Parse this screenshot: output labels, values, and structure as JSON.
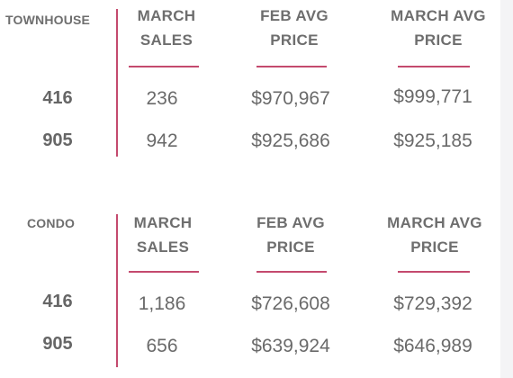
{
  "townhouse": {
    "label": "TOWNHOUSE",
    "columns": [
      {
        "line1": "MARCH",
        "line2": "SALES"
      },
      {
        "line1": "FEB AVG",
        "line2": "PRICE"
      },
      {
        "line1": "MARCH AVG",
        "line2": "PRICE"
      }
    ],
    "rows": [
      {
        "area": "416",
        "march_sales": "236",
        "feb_avg_price": "$970,967",
        "march_avg_price": "$999,771"
      },
      {
        "area": "905",
        "march_sales": "942",
        "feb_avg_price": "$925,686",
        "march_avg_price": "$925,185"
      }
    ]
  },
  "condo": {
    "label": "CONDO",
    "columns": [
      {
        "line1": "MARCH",
        "line2": "SALES"
      },
      {
        "line1": "FEB AVG",
        "line2": "PRICE"
      },
      {
        "line1": "MARCH AVG",
        "line2": "PRICE"
      }
    ],
    "rows": [
      {
        "area": "416",
        "march_sales": "1,186",
        "feb_avg_price": "$726,608",
        "march_avg_price": "$729,392"
      },
      {
        "area": "905",
        "march_sales": "656",
        "feb_avg_price": "$639,924",
        "march_avg_price": "$646,989"
      }
    ]
  },
  "colors": {
    "accent": "#c44a6e",
    "text": "#666666"
  }
}
